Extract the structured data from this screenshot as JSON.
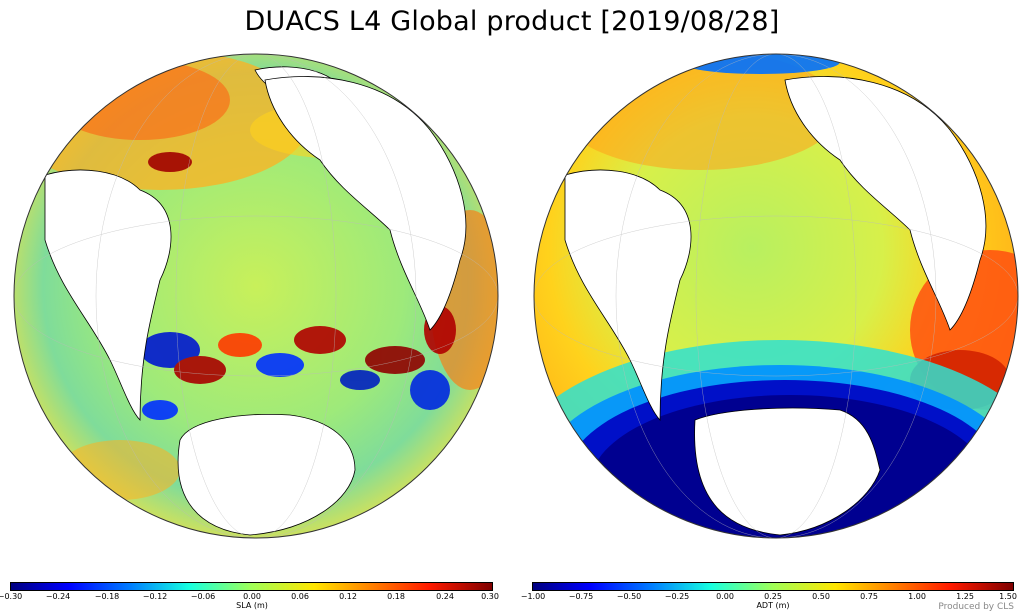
{
  "title": "DUACS L4 Global product [2019/08/28]",
  "left_panel": {
    "colorbar_label": "SLA (m)",
    "ticks": [
      "−0.30",
      "−0.24",
      "−0.18",
      "−0.12",
      "−0.06",
      "0.00",
      "0.06",
      "0.12",
      "0.18",
      "0.24",
      "0.30"
    ]
  },
  "right_panel": {
    "colorbar_label": "ADT (m)",
    "ticks": [
      "−1.00",
      "−0.75",
      "−0.50",
      "−0.25",
      "0.00",
      "0.25",
      "0.50",
      "0.75",
      "1.00",
      "1.25",
      "1.50"
    ]
  },
  "credit": "Produced by CLS",
  "colormap": [
    "#00007f",
    "#0000ff",
    "#0080ff",
    "#17ffe0",
    "#a0ff57",
    "#ffe600",
    "#ff8000",
    "#ff1a00",
    "#7f0000"
  ]
}
